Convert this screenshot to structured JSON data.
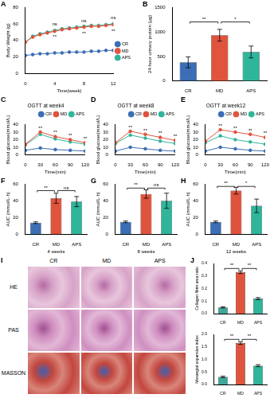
{
  "chart_data": [
    {
      "panel_label": "A",
      "type": "line",
      "x": [
        0,
        1,
        2,
        3,
        4,
        5,
        6,
        7,
        8,
        9,
        10,
        11,
        12
      ],
      "series": [
        {
          "name": "CR",
          "color": "#3b6eb4",
          "values": [
            22,
            23,
            24,
            24,
            25,
            25,
            26,
            26,
            26,
            27,
            27,
            28,
            28
          ]
        },
        {
          "name": "MD",
          "color": "#e0533c",
          "values": [
            38,
            44,
            47,
            49,
            51,
            53,
            54,
            55,
            56,
            57,
            57,
            58,
            59
          ]
        },
        {
          "name": "APS",
          "color": "#2fb59a",
          "values": [
            38,
            45,
            48,
            50,
            52,
            54,
            55,
            56,
            57,
            58,
            58,
            59,
            60
          ]
        }
      ],
      "xlim": [
        0,
        12
      ],
      "xticks": [
        0,
        4,
        8,
        12
      ],
      "ylim": [
        0,
        80
      ],
      "yticks": [
        0,
        20,
        40,
        60,
        80
      ],
      "x_label": "Time(week)",
      "y_label": "Body Weight (g)",
      "legend": "right",
      "marker": "circle",
      "line_style": "solid",
      "grid": false,
      "annotations": [
        {
          "x": 4,
          "y": 60,
          "text": "ns"
        },
        {
          "x": 8,
          "y": 63,
          "text": "ns"
        },
        {
          "x": 12,
          "y": 67,
          "text": "ns"
        },
        {
          "x": 4,
          "y": 44,
          "text": "**"
        },
        {
          "x": 8,
          "y": 48,
          "text": "**"
        },
        {
          "x": 12,
          "y": 51,
          "text": "**"
        }
      ]
    },
    {
      "panel_label": "B",
      "type": "bar",
      "categories": [
        "CR",
        "MD",
        "APS"
      ],
      "values": [
        380,
        930,
        590
      ],
      "errors": [
        110,
        120,
        120
      ],
      "colors": [
        "#3b6eb4",
        "#e0533c",
        "#2fb59a"
      ],
      "ylim": [
        0,
        1500
      ],
      "yticks": [
        0,
        500,
        1000,
        1500
      ],
      "y_label": "24-hour urinary protein (μg)",
      "grid": false,
      "annotations": [
        {
          "from": "CR",
          "to": "MD",
          "y": 1200,
          "text": "**"
        },
        {
          "from": "MD",
          "to": "APS",
          "y": 1200,
          "text": "*"
        }
      ]
    },
    {
      "panel_label": "C",
      "type": "line",
      "title": "OGTT at week4",
      "x": [
        0,
        30,
        60,
        90,
        120
      ],
      "series": [
        {
          "name": "CR",
          "color": "#3b6eb4",
          "values": [
            6,
            9,
            7,
            6,
            5
          ]
        },
        {
          "name": "MD",
          "color": "#e0533c",
          "values": [
            14,
            30,
            24,
            20,
            16
          ]
        },
        {
          "name": "APS",
          "color": "#2fb59a",
          "values": [
            13,
            27,
            21,
            17,
            14
          ]
        }
      ],
      "xlim": [
        0,
        120
      ],
      "xticks": [
        0,
        30,
        60,
        90,
        120
      ],
      "ylim": [
        0,
        40
      ],
      "yticks": [
        0,
        10,
        20,
        30,
        40
      ],
      "x_label": "Time(min)",
      "y_label": "Blood glucose(mmol/L)",
      "legend": "top right",
      "marker": "circle",
      "line_style": "solid",
      "grid": false,
      "annotations": [
        {
          "x": 30,
          "y": 35,
          "text": "**"
        },
        {
          "x": 60,
          "y": 29,
          "text": "**"
        },
        {
          "x": 90,
          "y": 25,
          "text": "**"
        },
        {
          "x": 120,
          "y": 21,
          "text": "**"
        }
      ]
    },
    {
      "panel_label": "D",
      "type": "line",
      "title": "OGTT at week8",
      "x": [
        0,
        30,
        60,
        90,
        120
      ],
      "series": [
        {
          "name": "CR",
          "color": "#3b6eb4",
          "values": [
            5,
            10,
            8,
            6,
            5
          ]
        },
        {
          "name": "MD",
          "color": "#e0533c",
          "values": [
            16,
            31,
            27,
            23,
            19
          ]
        },
        {
          "name": "APS",
          "color": "#2fb59a",
          "values": [
            15,
            26,
            22,
            18,
            15
          ]
        }
      ],
      "xlim": [
        0,
        120
      ],
      "xticks": [
        0,
        30,
        60,
        90,
        120
      ],
      "ylim": [
        0,
        40
      ],
      "yticks": [
        0,
        10,
        20,
        30,
        40
      ],
      "x_label": "Time(min)",
      "y_label": "Blood glucose(mmol/L)",
      "legend": "top right",
      "marker": "circle",
      "line_style": "solid",
      "grid": false,
      "annotations": [
        {
          "x": 30,
          "y": 36,
          "text": "**"
        },
        {
          "x": 60,
          "y": 32,
          "text": "**"
        },
        {
          "x": 90,
          "y": 28,
          "text": "**"
        },
        {
          "x": 120,
          "y": 24,
          "text": "**"
        }
      ]
    },
    {
      "panel_label": "E",
      "type": "line",
      "title": "OGTT at week12",
      "x": [
        0,
        30,
        60,
        90,
        120
      ],
      "series": [
        {
          "name": "CR",
          "color": "#3b6eb4",
          "values": [
            5,
            10,
            8,
            6,
            5
          ]
        },
        {
          "name": "MD",
          "color": "#e0533c",
          "values": [
            18,
            33,
            30,
            27,
            23
          ]
        },
        {
          "name": "APS",
          "color": "#2fb59a",
          "values": [
            16,
            25,
            20,
            17,
            14
          ]
        }
      ],
      "xlim": [
        0,
        120
      ],
      "xticks": [
        0,
        30,
        60,
        90,
        120
      ],
      "ylim": [
        0,
        40
      ],
      "yticks": [
        0,
        10,
        20,
        30,
        40
      ],
      "x_label": "Time(min)",
      "y_label": "Blood glucose(mmol/L)",
      "legend": "top right",
      "marker": "circle",
      "line_style": "solid",
      "grid": false,
      "annotations": [
        {
          "x": 30,
          "y": 38,
          "text": "**"
        },
        {
          "x": 60,
          "y": 35,
          "text": "**"
        },
        {
          "x": 90,
          "y": 32,
          "text": "**"
        },
        {
          "x": 120,
          "y": 28,
          "text": "**"
        }
      ]
    },
    {
      "panel_label": "F",
      "type": "bar",
      "categories": [
        "CR",
        "MD",
        "APS"
      ],
      "values": [
        14,
        43,
        39
      ],
      "errors": [
        1,
        6,
        6
      ],
      "colors": [
        "#3b6eb4",
        "#e0533c",
        "#2fb59a"
      ],
      "ylim": [
        0,
        60
      ],
      "yticks": [
        0,
        20,
        40,
        60
      ],
      "x_label": "4 weeks",
      "y_label": "AUC (mmol/L·h)",
      "grid": false,
      "annotations": [
        {
          "from": "CR",
          "to": "MD",
          "y": 52,
          "text": "**"
        },
        {
          "from": "MD",
          "to": "APS",
          "y": 52,
          "text": "ns"
        }
      ]
    },
    {
      "panel_label": "G",
      "type": "bar",
      "categories": [
        "CR",
        "MD",
        "APS"
      ],
      "values": [
        15,
        48,
        40
      ],
      "errors": [
        1,
        5,
        9
      ],
      "colors": [
        "#3b6eb4",
        "#e0533c",
        "#2fb59a"
      ],
      "ylim": [
        0,
        60
      ],
      "yticks": [
        0,
        20,
        40,
        60
      ],
      "x_label": "8 weeks",
      "y_label": "AUC (mmol/L·h)",
      "grid": false,
      "annotations": [
        {
          "from": "CR",
          "to": "MD",
          "y": 55,
          "text": "**"
        },
        {
          "from": "MD",
          "to": "APS",
          "y": 55,
          "text": "ns"
        }
      ]
    },
    {
      "panel_label": "H",
      "type": "bar",
      "categories": [
        "CR",
        "MD",
        "APS"
      ],
      "values": [
        15,
        52,
        34
      ],
      "errors": [
        1,
        4,
        8
      ],
      "colors": [
        "#3b6eb4",
        "#e0533c",
        "#2fb59a"
      ],
      "ylim": [
        0,
        60
      ],
      "yticks": [
        0,
        20,
        40,
        60
      ],
      "x_label": "12 weeks",
      "y_label": "AUC (mmol/L·h)",
      "grid": false,
      "annotations": [
        {
          "from": "CR",
          "to": "MD",
          "y": 57,
          "text": "**"
        },
        {
          "from": "MD",
          "to": "APS",
          "y": 57,
          "text": "*"
        }
      ]
    },
    {
      "panel_label": "J",
      "type": "bar",
      "categories": [
        "CR",
        "MD",
        "APS"
      ],
      "values": [
        0.05,
        0.33,
        0.12
      ],
      "errors": [
        0.005,
        0.01,
        0.008
      ],
      "colors": [
        "#3fa89a",
        "#e0533c",
        "#2fb59a"
      ],
      "ylim": [
        0,
        0.4
      ],
      "yticks": [
        {
          "value": 0,
          "label": "0.0"
        },
        0.1,
        0.2,
        0.3,
        0.4
      ],
      "y_label": "Collagen fibrin area ratio",
      "grid": false,
      "annotations": [
        {
          "from": "CR",
          "to": "MD",
          "y": 0.36,
          "text": "**"
        },
        {
          "from": "MD",
          "to": "APS",
          "y": 0.36,
          "text": "**"
        }
      ]
    },
    {
      "type": "bar",
      "categories": [
        "CR",
        "MD",
        "APS"
      ],
      "values": [
        0.3,
        1.65,
        0.75
      ],
      "errors": [
        0.03,
        0.05,
        0.04
      ],
      "colors": [
        "#3fa89a",
        "#e0533c",
        "#2fb59a"
      ],
      "ylim": [
        0,
        2
      ],
      "yticks": [
        {
          "value": 0,
          "label": "0.0"
        },
        0.5,
        {
          "value": 1,
          "label": "1.0"
        },
        1.5,
        {
          "value": 2,
          "label": "2.0"
        }
      ],
      "y_label": "Mesangial expansion index",
      "grid": false,
      "annotations": [
        {
          "from": "CR",
          "to": "MD",
          "y": 1.8,
          "text": "**"
        },
        {
          "from": "MD",
          "to": "APS",
          "y": 1.8,
          "text": "**"
        }
      ]
    }
  ],
  "histology": {
    "panel_label": "I",
    "columns": [
      "CR",
      "MD",
      "APS"
    ],
    "rows": [
      "HE",
      "PAS",
      "MASSON"
    ]
  }
}
